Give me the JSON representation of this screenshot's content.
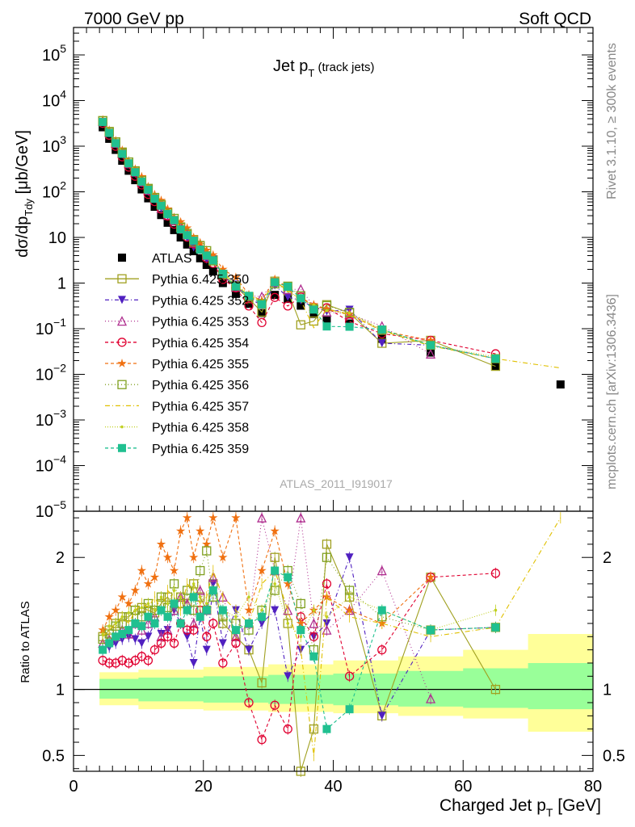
{
  "header": {
    "left": "7000 GeV pp",
    "right": "Soft QCD"
  },
  "side": {
    "rivet": "Rivet 3.1.10, ≥ 300k events",
    "mcplots": "mcplots.cern.ch [arXiv:1306.3436]"
  },
  "title": {
    "main": "Jet p",
    "sub": "T",
    "suffix": " (track jets)"
  },
  "ylabel_top": "dσ/dp_Tdy [μb/GeV]",
  "ylabel_ratio": "Ratio to ATLAS",
  "xlabel": "Charged Jet p_T [GeV]",
  "watermark": "ATLAS_2011_I919017",
  "chart_data": {
    "type": "scatter",
    "x_range": [
      0,
      80
    ],
    "y_range_top": [
      1e-05,
      400000.0
    ],
    "y_scale_top": "log",
    "y_range_ratio": [
      0.38,
      2.35
    ],
    "x_ticks": [
      "0",
      "20",
      "40",
      "60",
      "80"
    ],
    "y_ticks_top": [
      {
        "v": 100000.0,
        "b": "10",
        "e": "5"
      },
      {
        "v": 10000.0,
        "b": "10",
        "e": "4"
      },
      {
        "v": 1000.0,
        "b": "10",
        "e": "3"
      },
      {
        "v": 100.0,
        "b": "10",
        "e": "2"
      },
      {
        "v": 10,
        "b": "10",
        "e": ""
      },
      {
        "v": 1,
        "b": "1",
        "e": ""
      },
      {
        "v": 0.1,
        "b": "10",
        "e": "−1"
      },
      {
        "v": 0.01,
        "b": "10",
        "e": "−2"
      },
      {
        "v": 0.001,
        "b": "10",
        "e": "−3"
      },
      {
        "v": 0.0001,
        "b": "10",
        "e": "−4"
      },
      {
        "v": 1e-05,
        "b": "10",
        "e": "−5"
      }
    ],
    "y_ticks_ratio": [
      {
        "v": 0.5,
        "label": "0.5"
      },
      {
        "v": 1,
        "label": "1"
      },
      {
        "v": 2,
        "label": "2"
      }
    ],
    "x": [
      4.5,
      5.5,
      6.5,
      7.5,
      8.5,
      9.5,
      10.5,
      11.5,
      12.5,
      13.5,
      14.5,
      15.5,
      16.5,
      17.5,
      18.5,
      19.5,
      20.5,
      21.5,
      23,
      25,
      27,
      29,
      31,
      33,
      35,
      37,
      39,
      42.5,
      47.5,
      55,
      65,
      75
    ],
    "atlas": [
      2600,
      1450,
      830,
      480,
      290,
      180,
      113,
      72,
      47,
      31,
      21,
      14.5,
      10,
      7,
      5,
      3.5,
      2.5,
      1.8,
      1.0,
      0.58,
      0.35,
      0.22,
      0.55,
      0.45,
      0.32,
      0.21,
      0.16,
      0.13,
      0.06,
      0.03,
      0.015,
      0.006
    ],
    "atlas_ratio_band_inner": [
      [
        4,
        0.93,
        1.08
      ],
      [
        10,
        0.91,
        1.09
      ],
      [
        20,
        0.9,
        1.1
      ],
      [
        30,
        0.89,
        1.11
      ],
      [
        40,
        0.88,
        1.12
      ],
      [
        50,
        0.87,
        1.14
      ],
      [
        60,
        0.86,
        1.16
      ],
      [
        70,
        0.85,
        1.2
      ],
      [
        80,
        0.85,
        1.22
      ]
    ],
    "atlas_ratio_band_outer": [
      [
        4,
        0.88,
        1.13
      ],
      [
        10,
        0.85,
        1.15
      ],
      [
        20,
        0.84,
        1.17
      ],
      [
        30,
        0.83,
        1.19
      ],
      [
        40,
        0.82,
        1.22
      ],
      [
        50,
        0.8,
        1.25
      ],
      [
        60,
        0.78,
        1.3
      ],
      [
        70,
        0.68,
        1.42
      ],
      [
        80,
        0.68,
        1.42
      ]
    ],
    "series": [
      {
        "name": "ATLAS",
        "color": "#000000",
        "marker": "square_filled",
        "dash": ""
      },
      {
        "name": "Pythia 6.425 350",
        "color": "#a0a020",
        "marker": "square_open",
        "dash": "",
        "ratio": [
          1.4,
          1.45,
          1.5,
          1.55,
          1.55,
          1.6,
          1.62,
          1.6,
          1.58,
          1.65,
          1.7,
          1.6,
          1.7,
          1.65,
          1.8,
          1.7,
          1.6,
          1.8,
          1.5,
          1.4,
          1.3,
          1.05,
          2.0,
          1.5,
          0.38,
          0.7,
          2.1,
          1.7,
          0.8,
          1.85,
          1.0,
          null
        ]
      },
      {
        "name": "Pythia 6.425 352",
        "color": "#5020c0",
        "marker": "tri_down_filled",
        "dash": "5,3,1,3",
        "ratio": [
          1.3,
          1.32,
          1.35,
          1.38,
          1.4,
          1.38,
          1.35,
          1.4,
          1.5,
          1.42,
          1.45,
          1.6,
          1.5,
          1.4,
          1.2,
          1.55,
          1.3,
          1.8,
          1.35,
          1.6,
          1.3,
          1.5,
          1.6,
          1.1,
          1.3,
          1.4,
          1.5,
          2.0,
          0.8,
          1.45,
          1.47,
          null
        ]
      },
      {
        "name": "Pythia 6.425 353",
        "color": "#b03090",
        "marker": "tri_up_open",
        "dash": "1,3",
        "ratio": [
          1.35,
          1.38,
          1.4,
          1.45,
          1.42,
          1.5,
          1.45,
          1.5,
          1.55,
          1.4,
          1.45,
          1.6,
          1.7,
          1.65,
          1.5,
          1.75,
          1.6,
          1.85,
          1.7,
          1.4,
          1.5,
          2.3,
          1.9,
          1.6,
          2.3,
          1.5,
          1.45,
          1.6,
          1.9,
          0.93,
          null,
          null
        ]
      },
      {
        "name": "Pythia 6.425 354",
        "color": "#e00030",
        "marker": "circle_open",
        "dash": "4,3",
        "ratio": [
          1.22,
          1.2,
          1.2,
          1.22,
          1.2,
          1.22,
          1.25,
          1.22,
          1.3,
          1.35,
          1.4,
          1.35,
          1.5,
          1.45,
          1.45,
          1.6,
          1.4,
          1.5,
          1.2,
          1.35,
          0.9,
          0.62,
          0.88,
          0.7,
          1.55,
          1.4,
          1.8,
          1.1,
          1.3,
          1.85,
          1.88,
          null
        ]
      },
      {
        "name": "Pythia 6.425 355",
        "color": "#f07010",
        "marker": "star_filled",
        "dash": "4,3",
        "ratio": [
          1.45,
          1.55,
          1.6,
          1.7,
          1.65,
          1.75,
          1.9,
          1.8,
          1.85,
          2.1,
          2.0,
          1.9,
          2.2,
          2.3,
          2.0,
          2.2,
          2.1,
          2.3,
          2.0,
          2.3,
          1.6,
          1.9,
          2.2,
          1.8,
          1.5,
          1.6,
          1.7,
          1.6,
          1.5,
          1.85,
          null,
          null
        ]
      },
      {
        "name": "Pythia 6.425 356",
        "color": "#80a020",
        "marker": "square_open",
        "dash": "1,3",
        "ratio": [
          1.38,
          1.42,
          1.48,
          1.5,
          1.55,
          1.6,
          1.55,
          1.65,
          1.6,
          1.7,
          1.62,
          1.8,
          1.65,
          1.75,
          1.6,
          1.9,
          2.05,
          1.7,
          1.55,
          1.5,
          1.45,
          1.6,
          1.75,
          1.9,
          1.65,
          1.3,
          2.0,
          1.75,
          1.55,
          1.45,
          1.47,
          null
        ]
      },
      {
        "name": "Pythia 6.425 357",
        "color": "#e0c000",
        "marker": "none",
        "dash": "6,3,1,3",
        "ratio": [
          1.4,
          1.45,
          1.5,
          1.55,
          1.5,
          1.6,
          1.65,
          1.62,
          1.7,
          1.6,
          1.75,
          1.7,
          1.6,
          1.8,
          1.75,
          1.65,
          1.7,
          1.9,
          1.7,
          1.6,
          1.5,
          1.8,
          1.9,
          1.6,
          1.3,
          0.5,
          1.7,
          1.55,
          1.5,
          1.4,
          1.47,
          2.3
        ]
      },
      {
        "name": "Pythia 6.425 358",
        "color": "#c0d020",
        "marker": "dot",
        "dash": "1,2",
        "ratio": [
          1.42,
          1.48,
          1.5,
          1.55,
          1.58,
          1.6,
          1.62,
          1.65,
          1.6,
          1.7,
          1.65,
          1.75,
          1.7,
          1.6,
          1.8,
          1.7,
          1.65,
          1.75,
          1.6,
          1.55,
          1.7,
          1.6,
          1.8,
          1.5,
          1.4,
          1.6,
          1.55,
          1.7,
          1.6,
          1.45,
          1.6,
          null
        ]
      },
      {
        "name": "Pythia 6.425 359",
        "color": "#20c090",
        "marker": "square_filled",
        "dash": "4,3",
        "ratio": [
          1.3,
          1.35,
          1.4,
          1.42,
          1.45,
          1.5,
          1.48,
          1.55,
          1.5,
          1.6,
          1.55,
          1.65,
          1.5,
          1.6,
          1.7,
          1.55,
          1.6,
          1.75,
          1.6,
          1.45,
          1.5,
          1.55,
          1.9,
          1.85,
          1.45,
          1.25,
          0.7,
          0.85,
          1.6,
          1.45,
          1.47,
          null
        ]
      }
    ]
  }
}
